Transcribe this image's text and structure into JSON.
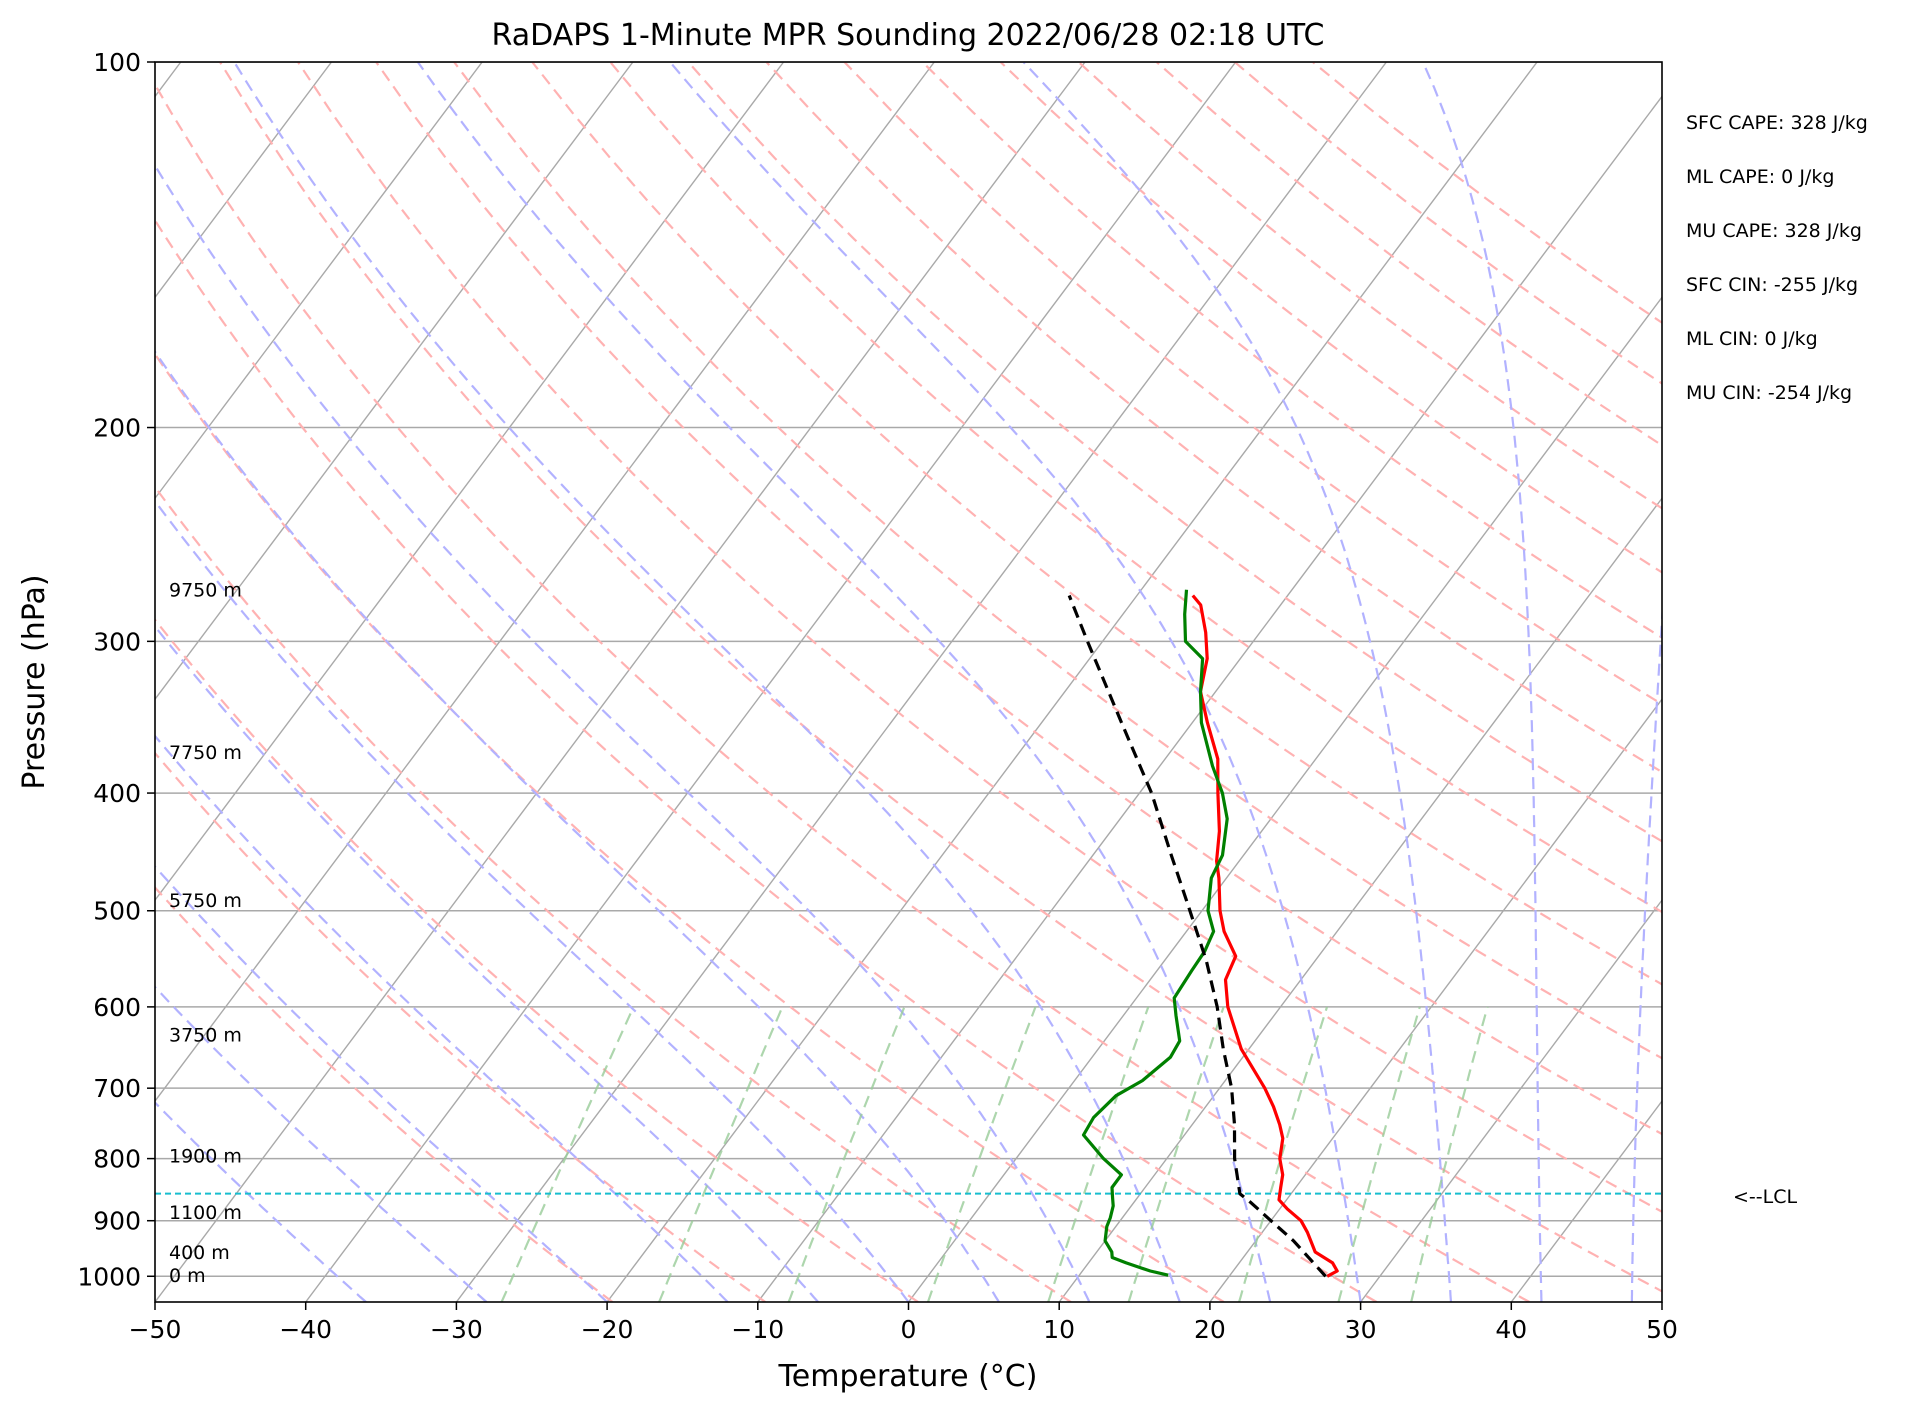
{
  "chart_data": {
    "type": "line",
    "title": "RaDAPS 1-Minute MPR Sounding 2022/06/28 02:18 UTC",
    "xlabel": "Temperature (°C)",
    "ylabel": "Pressure (hPa)",
    "xlim": [
      -50,
      50
    ],
    "ylim": [
      1050,
      100
    ],
    "y_scale": "log",
    "grid": "on",
    "x_ticks": [
      -50,
      -40,
      -30,
      -20,
      -10,
      0,
      10,
      20,
      30,
      40,
      50
    ],
    "x_tick_labels": [
      "−50",
      "−40",
      "−30",
      "−20",
      "−10",
      "0",
      "10",
      "20",
      "30",
      "40",
      "50"
    ],
    "y_ticks": [
      100,
      200,
      300,
      400,
      500,
      600,
      700,
      800,
      900,
      1000
    ],
    "y_tick_labels": [
      "100",
      "200",
      "300",
      "400",
      "500",
      "600",
      "700",
      "800",
      "900",
      "1000"
    ],
    "colors": {
      "temperature": "#ff0000",
      "dewpoint": "#008000",
      "parcel": "#000000",
      "lcl": "#17becf",
      "dry_adiabats": "#ffb2b2",
      "moist_adiabats": "#b2b2ff",
      "mixing_ratio": "#99cc99",
      "isotherms": "#a9a9a9"
    },
    "series": [
      {
        "role": "temperature",
        "points": [
          [
            1000,
            26.5
          ],
          [
            990,
            26.9
          ],
          [
            975,
            26.2
          ],
          [
            955,
            24.5
          ],
          [
            920,
            23.0
          ],
          [
            900,
            22.0
          ],
          [
            880,
            20.5
          ],
          [
            865,
            19.5
          ],
          [
            845,
            19.0
          ],
          [
            825,
            18.5
          ],
          [
            800,
            17.5
          ],
          [
            770,
            16.7
          ],
          [
            750,
            15.8
          ],
          [
            725,
            14.5
          ],
          [
            700,
            13.0
          ],
          [
            650,
            9.5
          ],
          [
            600,
            6.5
          ],
          [
            570,
            5.0
          ],
          [
            545,
            4.5
          ],
          [
            520,
            2.5
          ],
          [
            500,
            1.2
          ],
          [
            470,
            -0.5
          ],
          [
            455,
            -1.5
          ],
          [
            430,
            -2.8
          ],
          [
            400,
            -4.8
          ],
          [
            375,
            -6.5
          ],
          [
            350,
            -9.0
          ],
          [
            330,
            -11.0
          ],
          [
            310,
            -12.2
          ],
          [
            295,
            -13.6
          ],
          [
            280,
            -15.3
          ],
          [
            275,
            -16.3
          ]
        ]
      },
      {
        "role": "dewpoint",
        "points": [
          [
            998,
            15.9
          ],
          [
            990,
            14.5
          ],
          [
            975,
            12.5
          ],
          [
            965,
            11.3
          ],
          [
            955,
            11.0
          ],
          [
            935,
            10.0
          ],
          [
            910,
            9.4
          ],
          [
            895,
            9.2
          ],
          [
            875,
            8.8
          ],
          [
            860,
            8.3
          ],
          [
            845,
            7.8
          ],
          [
            825,
            7.8
          ],
          [
            800,
            5.8
          ],
          [
            765,
            3.3
          ],
          [
            740,
            3.1
          ],
          [
            710,
            3.5
          ],
          [
            690,
            4.5
          ],
          [
            660,
            5.2
          ],
          [
            640,
            5.0
          ],
          [
            610,
            3.5
          ],
          [
            590,
            2.5
          ],
          [
            560,
            2.3
          ],
          [
            540,
            2.2
          ],
          [
            520,
            1.8
          ],
          [
            500,
            0.4
          ],
          [
            470,
            -1.0
          ],
          [
            450,
            -1.4
          ],
          [
            420,
            -2.9
          ],
          [
            400,
            -4.5
          ],
          [
            380,
            -6.5
          ],
          [
            350,
            -9.4
          ],
          [
            330,
            -11.0
          ],
          [
            310,
            -12.5
          ],
          [
            300,
            -14.5
          ],
          [
            285,
            -15.9
          ],
          [
            272,
            -17.0
          ]
        ]
      },
      {
        "role": "parcel",
        "points": [
          [
            1000,
            26.4
          ],
          [
            935,
            22.5
          ],
          [
            900,
            20.0
          ],
          [
            870,
            17.8
          ],
          [
            855,
            16.6
          ],
          [
            800,
            14.5
          ],
          [
            750,
            12.8
          ],
          [
            700,
            10.8
          ],
          [
            650,
            8.3
          ],
          [
            600,
            5.8
          ],
          [
            550,
            2.8
          ],
          [
            500,
            -0.8
          ],
          [
            450,
            -4.8
          ],
          [
            400,
            -9.2
          ],
          [
            350,
            -14.7
          ],
          [
            300,
            -21.0
          ],
          [
            275,
            -24.5
          ]
        ]
      }
    ],
    "dry_adiabats_K": [
      250,
      260,
      270,
      280,
      290,
      300,
      310,
      320,
      330,
      340,
      350,
      360,
      370,
      380,
      390,
      400,
      410,
      420,
      430,
      440,
      450,
      460
    ],
    "moist_adiabats_start_C": [
      -36,
      -28,
      -20,
      -12,
      -6,
      0,
      6,
      12,
      18,
      24,
      30,
      36,
      42,
      48
    ],
    "mixing_ratios_gkg": [
      0.4,
      1,
      2,
      4,
      7,
      10,
      16,
      24,
      32
    ],
    "height_labels": [
      {
        "text": "9750 m",
        "p": 272
      },
      {
        "text": "7750 m",
        "p": 370
      },
      {
        "text": "5750 m",
        "p": 490
      },
      {
        "text": "3750 m",
        "p": 632
      },
      {
        "text": "1900 m",
        "p": 795
      },
      {
        "text": "1100 m",
        "p": 885
      },
      {
        "text": "400 m",
        "p": 955
      },
      {
        "text": "0 m",
        "p": 998
      }
    ],
    "lcl": {
      "p": 855,
      "label": "<--LCL"
    },
    "stats": [
      "SFC CAPE: 328 J/kg",
      "ML CAPE: 0 J/kg",
      "MU CAPE: 328 J/kg",
      "SFC CIN: -255 J/kg",
      "ML CIN: 0 J/kg",
      "MU CIN: -254 J/kg"
    ]
  }
}
